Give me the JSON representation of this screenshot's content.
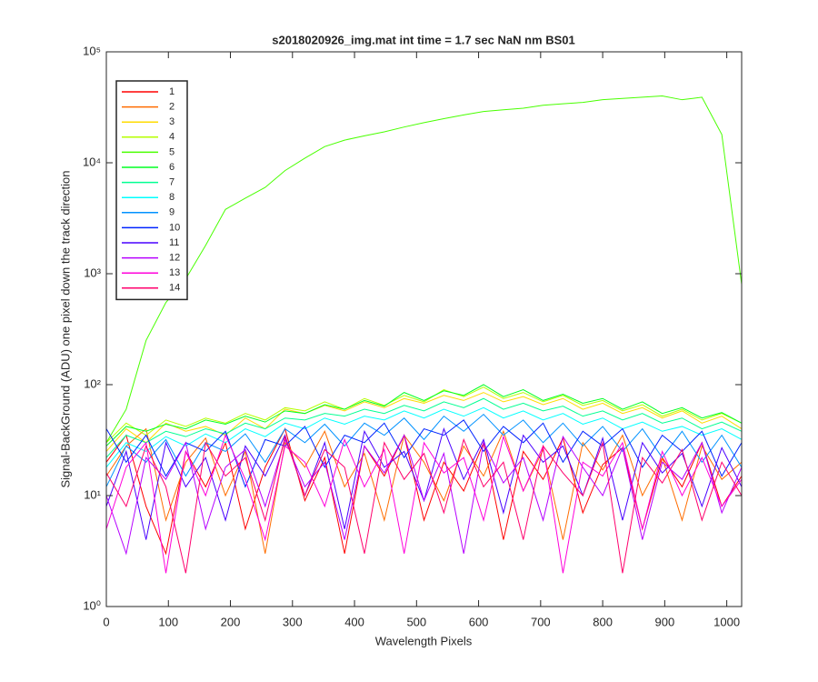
{
  "chart_data": {
    "type": "line",
    "title": "s2018020926_img.mat int time = 1.7 sec  NaN nm BS01",
    "xlabel": "Wavelength Pixels",
    "ylabel": "Signal-BackGround (ADU) one pixel down the track direction",
    "yscale": "log",
    "grid": false,
    "legend_location": "northwest",
    "xlim": [
      0,
      1024
    ],
    "xticks": [
      0,
      100,
      200,
      300,
      400,
      500,
      600,
      700,
      800,
      900,
      1000
    ],
    "ylim": [
      1,
      100000
    ],
    "yticks": [
      {
        "value": 1,
        "label": "10⁰"
      },
      {
        "value": 10,
        "label": "10¹"
      },
      {
        "value": 100,
        "label": "10²"
      },
      {
        "value": 1000,
        "label": "10³"
      },
      {
        "value": 10000,
        "label": "10⁴"
      },
      {
        "value": 100000,
        "label": "10⁵"
      }
    ],
    "x": [
      0,
      32,
      64,
      96,
      128,
      160,
      192,
      224,
      256,
      288,
      320,
      352,
      384,
      416,
      448,
      480,
      512,
      544,
      576,
      608,
      640,
      672,
      704,
      736,
      768,
      800,
      832,
      864,
      896,
      928,
      960,
      992,
      1024
    ],
    "series": [
      {
        "name": "1",
        "color": "#ff0000",
        "values": [
          20,
          35,
          8,
          3,
          25,
          12,
          30,
          5,
          18,
          40,
          9,
          22,
          3,
          28,
          15,
          35,
          6,
          20,
          11,
          30,
          4,
          25,
          14,
          33,
          7,
          19,
          27,
          5,
          22,
          12,
          30,
          8,
          15
        ]
      },
      {
        "name": "2",
        "color": "#ff6d00",
        "values": [
          15,
          28,
          40,
          6,
          20,
          33,
          10,
          25,
          3,
          30,
          18,
          38,
          12,
          24,
          6,
          35,
          20,
          9,
          28,
          15,
          38,
          11,
          26,
          4,
          30,
          17,
          35,
          10,
          22,
          6,
          28,
          14,
          20
        ]
      },
      {
        "name": "3",
        "color": "#ffdb00",
        "values": [
          25,
          40,
          30,
          45,
          38,
          42,
          35,
          50,
          40,
          60,
          55,
          65,
          58,
          70,
          62,
          75,
          68,
          80,
          72,
          85,
          70,
          78,
          66,
          75,
          60,
          68,
          55,
          62,
          50,
          58,
          45,
          52,
          40
        ]
      },
      {
        "name": "4",
        "color": "#b6ff00",
        "values": [
          30,
          45,
          35,
          48,
          42,
          50,
          45,
          55,
          48,
          62,
          58,
          70,
          60,
          75,
          65,
          80,
          70,
          90,
          78,
          95,
          75,
          85,
          70,
          80,
          65,
          72,
          58,
          66,
          52,
          60,
          48,
          55,
          45
        ]
      },
      {
        "name": "5",
        "color": "#49ff00",
        "values": [
          30,
          60,
          250,
          550,
          900,
          1800,
          3800,
          4800,
          6000,
          8500,
          11000,
          14000,
          16000,
          17500,
          19000,
          21000,
          23000,
          25000,
          27000,
          29000,
          30000,
          31000,
          33000,
          34000,
          35000,
          37000,
          38000,
          39000,
          40000,
          37000,
          39000,
          18000,
          800
        ]
      },
      {
        "name": "6",
        "color": "#00ff24",
        "values": [
          28,
          42,
          38,
          44,
          40,
          48,
          44,
          52,
          46,
          58,
          55,
          66,
          60,
          72,
          64,
          85,
          72,
          88,
          80,
          100,
          78,
          90,
          72,
          82,
          68,
          75,
          60,
          70,
          55,
          62,
          50,
          56,
          45
        ]
      },
      {
        "name": "7",
        "color": "#00ff92",
        "values": [
          22,
          35,
          30,
          38,
          34,
          40,
          36,
          45,
          40,
          50,
          48,
          55,
          52,
          60,
          55,
          65,
          58,
          70,
          62,
          75,
          60,
          68,
          58,
          64,
          52,
          58,
          48,
          55,
          45,
          50,
          40,
          46,
          38
        ]
      },
      {
        "name": "8",
        "color": "#00ffff",
        "values": [
          18,
          30,
          25,
          34,
          28,
          36,
          30,
          40,
          34,
          45,
          40,
          50,
          44,
          52,
          48,
          58,
          50,
          60,
          52,
          62,
          50,
          58,
          48,
          55,
          44,
          50,
          40,
          46,
          38,
          42,
          35,
          40,
          32
        ]
      },
      {
        "name": "9",
        "color": "#0092ff",
        "values": [
          12,
          28,
          20,
          32,
          15,
          30,
          25,
          36,
          20,
          40,
          30,
          44,
          28,
          45,
          35,
          50,
          32,
          52,
          38,
          54,
          35,
          48,
          30,
          45,
          28,
          42,
          25,
          40,
          22,
          38,
          20,
          35,
          18
        ]
      },
      {
        "name": "10",
        "color": "#0024ff",
        "values": [
          40,
          20,
          35,
          15,
          30,
          25,
          38,
          12,
          32,
          28,
          42,
          18,
          35,
          30,
          45,
          22,
          40,
          35,
          48,
          25,
          42,
          30,
          45,
          20,
          38,
          28,
          40,
          18,
          35,
          25,
          38,
          15,
          30
        ]
      },
      {
        "name": "11",
        "color": "#4900ff",
        "values": [
          8,
          25,
          4,
          30,
          12,
          22,
          6,
          28,
          15,
          35,
          10,
          30,
          5,
          38,
          18,
          25,
          9,
          40,
          14,
          32,
          7,
          35,
          20,
          28,
          10,
          33,
          6,
          30,
          16,
          24,
          8,
          27,
          12
        ]
      },
      {
        "name": "12",
        "color": "#b600ff",
        "values": [
          10,
          3,
          22,
          14,
          30,
          5,
          18,
          26,
          8,
          32,
          12,
          20,
          4,
          28,
          16,
          35,
          9,
          24,
          3,
          30,
          13,
          22,
          6,
          34,
          18,
          10,
          27,
          4,
          20,
          14,
          30,
          7,
          18
        ]
      },
      {
        "name": "13",
        "color": "#ff00db",
        "values": [
          5,
          18,
          30,
          2,
          25,
          10,
          35,
          14,
          4,
          28,
          20,
          8,
          32,
          12,
          26,
          3,
          30,
          16,
          22,
          6,
          34,
          11,
          28,
          2,
          20,
          15,
          30,
          5,
          25,
          10,
          22,
          8,
          14
        ]
      },
      {
        "name": "14",
        "color": "#ff006d",
        "values": [
          16,
          8,
          28,
          12,
          2,
          30,
          15,
          22,
          6,
          34,
          10,
          26,
          18,
          3,
          30,
          14,
          24,
          7,
          32,
          12,
          20,
          4,
          28,
          16,
          10,
          30,
          2,
          22,
          13,
          26,
          6,
          20,
          10
        ]
      }
    ]
  }
}
